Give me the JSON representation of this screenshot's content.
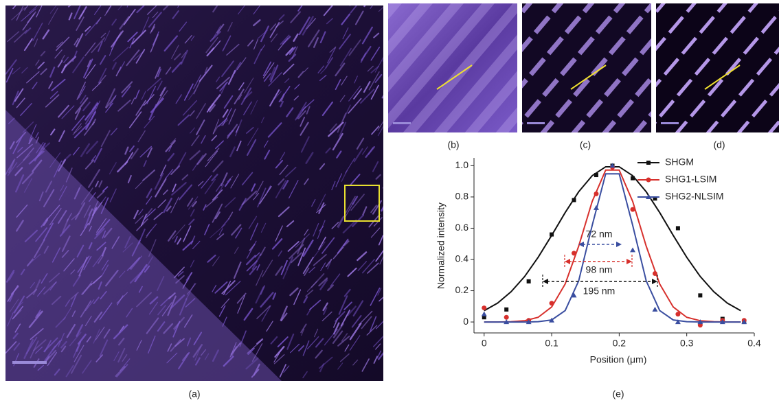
{
  "panels": {
    "a": "(a)",
    "b": "(b)",
    "c": "(c)",
    "d": "(d)",
    "e": "(e)"
  },
  "chart_data": {
    "type": "scatter",
    "x_label": "Position (μm)",
    "y_label": "Normalized intensity",
    "xlim": [
      -0.015,
      0.4
    ],
    "xticks": [
      0,
      0.1,
      0.2,
      0.3,
      0.4
    ],
    "ylim": [
      -0.07,
      1.05
    ],
    "yticks": [
      0,
      {
        "value": 0.2,
        "label": "0.2"
      },
      {
        "value": 0.4,
        "label": "0.4"
      },
      {
        "value": 0.6,
        "label": "0.6"
      },
      {
        "value": 0.8,
        "label": "0.8"
      },
      {
        "value": 1,
        "label": "1.0"
      }
    ],
    "x": [
      0,
      0.033,
      0.066,
      0.1,
      0.133,
      0.166,
      0.19,
      0.22,
      0.253,
      0.287,
      0.32,
      0.353,
      0.385
    ],
    "fit_x": [
      0,
      0.02,
      0.04,
      0.06,
      0.08,
      0.1,
      0.12,
      0.14,
      0.16,
      0.18,
      0.2,
      0.22,
      0.24,
      0.26,
      0.28,
      0.3,
      0.32,
      0.34,
      0.36,
      0.38
    ],
    "series": [
      {
        "name": "SHGM",
        "color": "#111111",
        "marker": "square",
        "values": [
          0.03,
          0.08,
          0.26,
          0.56,
          0.78,
          0.94,
          1.0,
          0.92,
          0.79,
          0.6,
          0.17,
          0.02,
          0.0
        ],
        "fit_values": [
          0.072,
          0.121,
          0.194,
          0.291,
          0.414,
          0.554,
          0.7,
          0.833,
          0.936,
          0.993,
          0.993,
          0.936,
          0.833,
          0.7,
          0.554,
          0.414,
          0.291,
          0.194,
          0.121,
          0.072
        ]
      },
      {
        "name": "SHG1-LSIM",
        "color": "#d7302c",
        "marker": "circle",
        "values": [
          0.09,
          0.03,
          0.01,
          0.12,
          0.44,
          0.82,
          0.99,
          0.72,
          0.31,
          0.05,
          -0.02,
          0.01,
          0.01
        ],
        "fit_values": [
          0,
          0,
          0.002,
          0.008,
          0.03,
          0.096,
          0.243,
          0.485,
          0.771,
          0.972,
          0.972,
          0.771,
          0.485,
          0.243,
          0.096,
          0.03,
          0.008,
          0.002,
          0,
          0
        ]
      },
      {
        "name": "SHG2-NLSIM",
        "color": "#3a4ea0",
        "marker": "triangle",
        "values": [
          0.05,
          0.0,
          0.0,
          0.01,
          0.17,
          0.73,
          1.0,
          0.46,
          0.08,
          0.0,
          0.0,
          0.0,
          0.0
        ],
        "fit_values": [
          0,
          0,
          0,
          0,
          0.002,
          0.013,
          0.073,
          0.263,
          0.618,
          0.948,
          0.948,
          0.618,
          0.263,
          0.073,
          0.013,
          0.002,
          0,
          0,
          0,
          0
        ]
      }
    ],
    "annotations": [
      {
        "text": "72 nm",
        "color": "#3a4ea0"
      },
      {
        "text": "98 nm",
        "color": "#d7302c"
      },
      {
        "text": "195 nm",
        "color": "#111111"
      }
    ]
  }
}
